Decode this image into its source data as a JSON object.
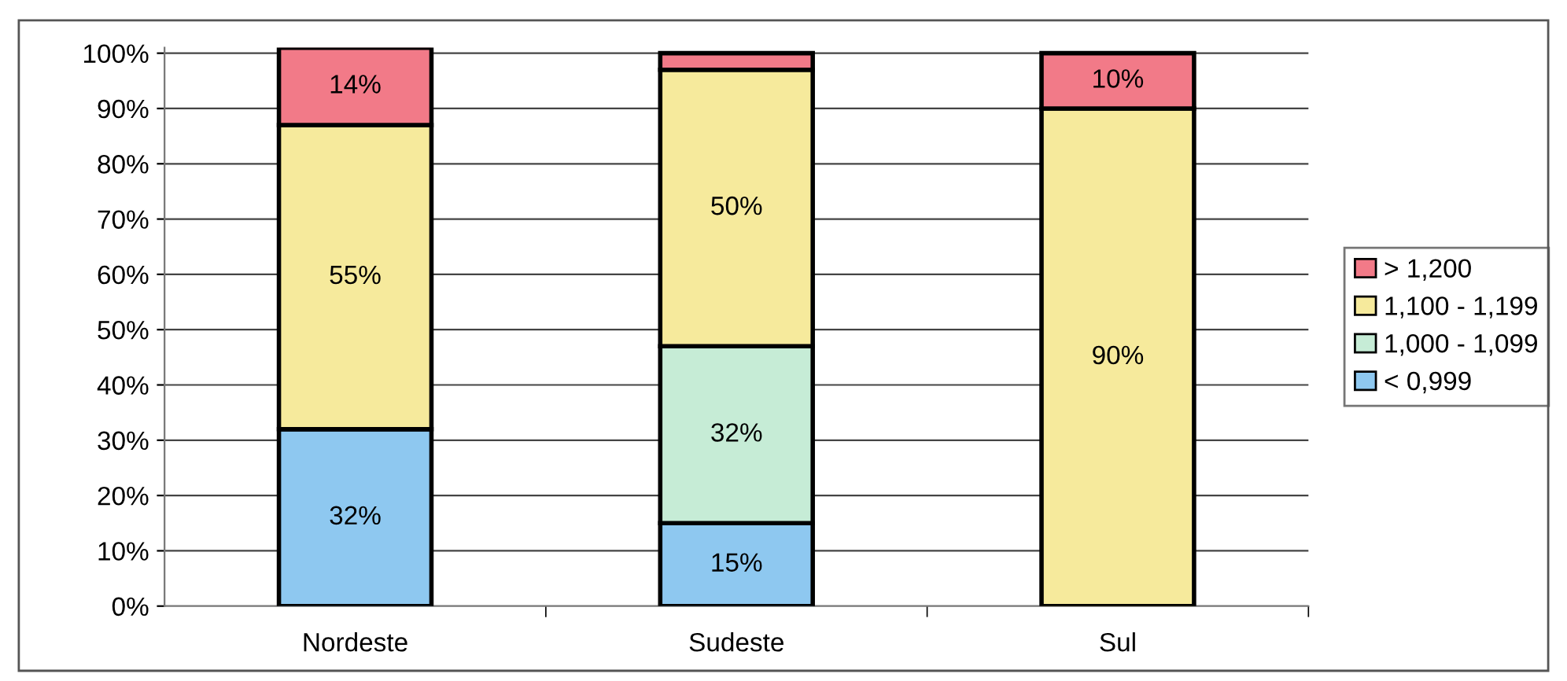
{
  "chart_data": {
    "type": "bar",
    "stacked": true,
    "categories": [
      "Nordeste",
      "Sudeste",
      "Sul"
    ],
    "series": [
      {
        "name": "< 0,999",
        "color": "#8ec8f0",
        "values": [
          32,
          15,
          0
        ],
        "value_labels": [
          "32%",
          "15%",
          null
        ]
      },
      {
        "name": "1,000 - 1,099",
        "color": "#c6ecd6",
        "values": [
          0,
          32,
          0
        ],
        "value_labels": [
          null,
          "32%",
          null
        ]
      },
      {
        "name": "1,100 - 1,199",
        "color": "#f6ea9c",
        "values": [
          55,
          50,
          90
        ],
        "value_labels": [
          "55%",
          "50%",
          "90%"
        ]
      },
      {
        "name": "> 1,200",
        "color": "#f27a88",
        "values": [
          14,
          3,
          10
        ],
        "value_labels": [
          "14%",
          null,
          "10%"
        ]
      }
    ],
    "ylim": [
      0,
      101
    ],
    "yticks": [
      {
        "value": 0,
        "label": "0%"
      },
      {
        "value": 10,
        "label": "10%"
      },
      {
        "value": 20,
        "label": "20%"
      },
      {
        "value": 30,
        "label": "30%"
      },
      {
        "value": 40,
        "label": "40%"
      },
      {
        "value": 50,
        "label": "50%"
      },
      {
        "value": 60,
        "label": "60%"
      },
      {
        "value": 70,
        "label": "70%"
      },
      {
        "value": 80,
        "label": "80%"
      },
      {
        "value": 90,
        "label": "90%"
      },
      {
        "value": 100,
        "label": "100%"
      }
    ],
    "grid": "y",
    "legend": "right"
  }
}
